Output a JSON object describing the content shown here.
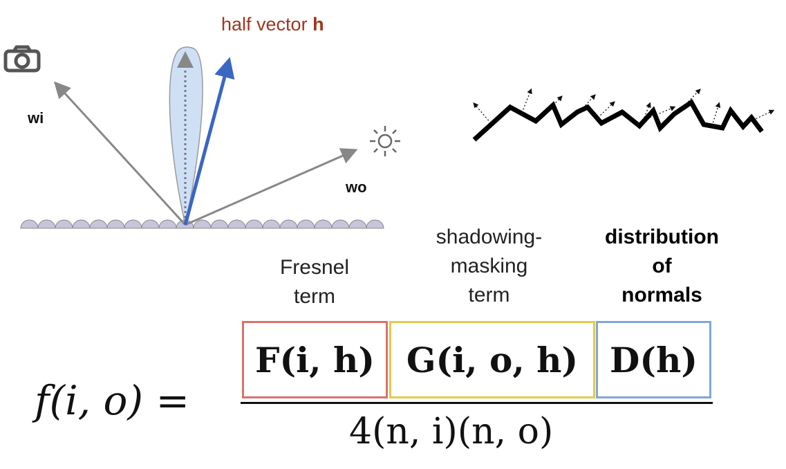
{
  "diagram": {
    "half_vector_label": "half vector ",
    "half_vector_symbol": "h",
    "wi_label": "wi",
    "wo_label": "wo",
    "icons": [
      "camera-icon",
      "sun-icon"
    ],
    "colors": {
      "half_vector": "#3a66c4",
      "lobe": "#cfe0f5",
      "surface": "#c7c5dc",
      "fresnel_box": "#d9726b",
      "shadowing_box": "#e8c94a",
      "distribution_box": "#7fa6dc",
      "title_red": "#a1361f"
    }
  },
  "terms": {
    "fresnel": [
      "Fresnel",
      "term"
    ],
    "shadowing": [
      "shadowing-",
      "masking",
      "term"
    ],
    "distribution": [
      "distribution",
      "of",
      "normals"
    ]
  },
  "formula": {
    "lhs": "f(i, o) =",
    "fresnel": "F(i, h)",
    "shadowing": "G(i, o, h)",
    "distribution": "D(h)",
    "denominator": "4(n, i)(n, o)"
  }
}
